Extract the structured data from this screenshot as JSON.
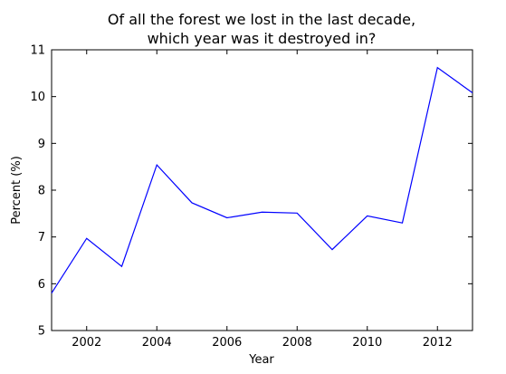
{
  "chart_data": {
    "type": "line",
    "title": "Of all the forest we lost in the last decade,\nwhich year was it destroyed in?",
    "xlabel": "Year",
    "ylabel": "Percent (%)",
    "xlim": [
      2001,
      2013
    ],
    "ylim": [
      5,
      11
    ],
    "x_ticks": [
      2002,
      2004,
      2006,
      2008,
      2010,
      2012
    ],
    "y_ticks": [
      5,
      6,
      7,
      8,
      9,
      10,
      11
    ],
    "grid": false,
    "series": [
      {
        "color": "#0000ff",
        "x": [
          2001,
          2002,
          2003,
          2004,
          2005,
          2006,
          2007,
          2008,
          2009,
          2010,
          2011,
          2012,
          2013
        ],
        "y": [
          5.8,
          6.97,
          6.37,
          8.54,
          7.73,
          7.41,
          7.53,
          7.51,
          6.73,
          7.45,
          7.3,
          10.62,
          10.08
        ]
      }
    ]
  }
}
